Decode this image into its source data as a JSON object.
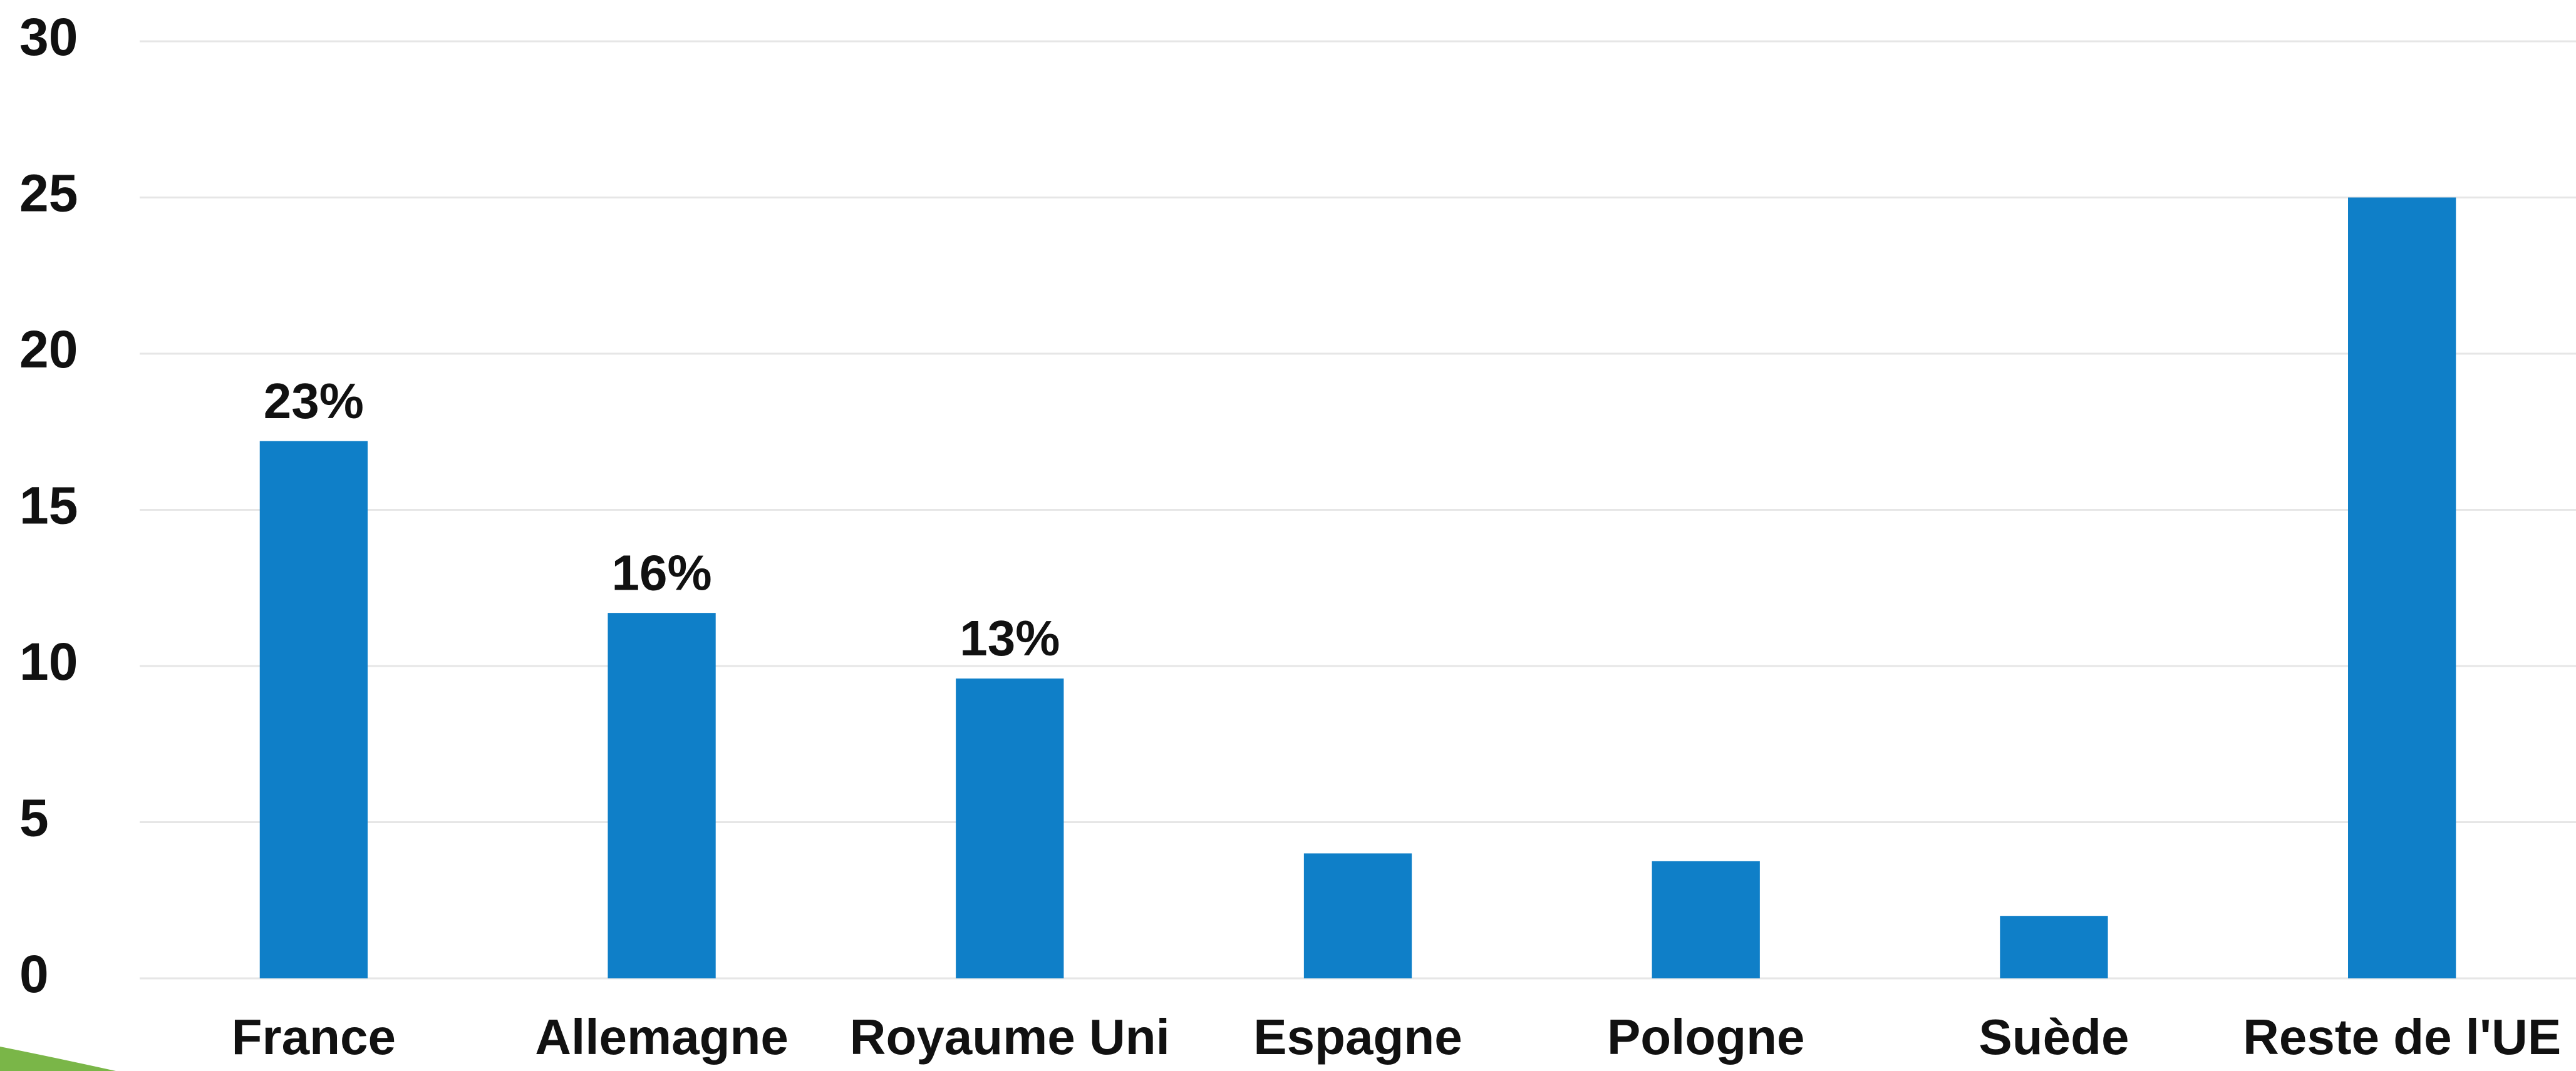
{
  "chart_data": {
    "type": "bar",
    "categories": [
      "France",
      "Allemagne",
      "Royaume Uni",
      "Espagne",
      "Pologne",
      "Suède",
      "Reste de l'UE"
    ],
    "values": [
      17.2,
      11.7,
      9.6,
      4.0,
      3.75,
      2.0,
      25
    ],
    "annotations": [
      "23%",
      "16%",
      "13%",
      null,
      null,
      null,
      null
    ],
    "color": "#0f7fc8",
    "ylim": [
      0,
      30
    ],
    "yticks": [
      0,
      5,
      10,
      15,
      20,
      25,
      30
    ],
    "grid": true
  }
}
